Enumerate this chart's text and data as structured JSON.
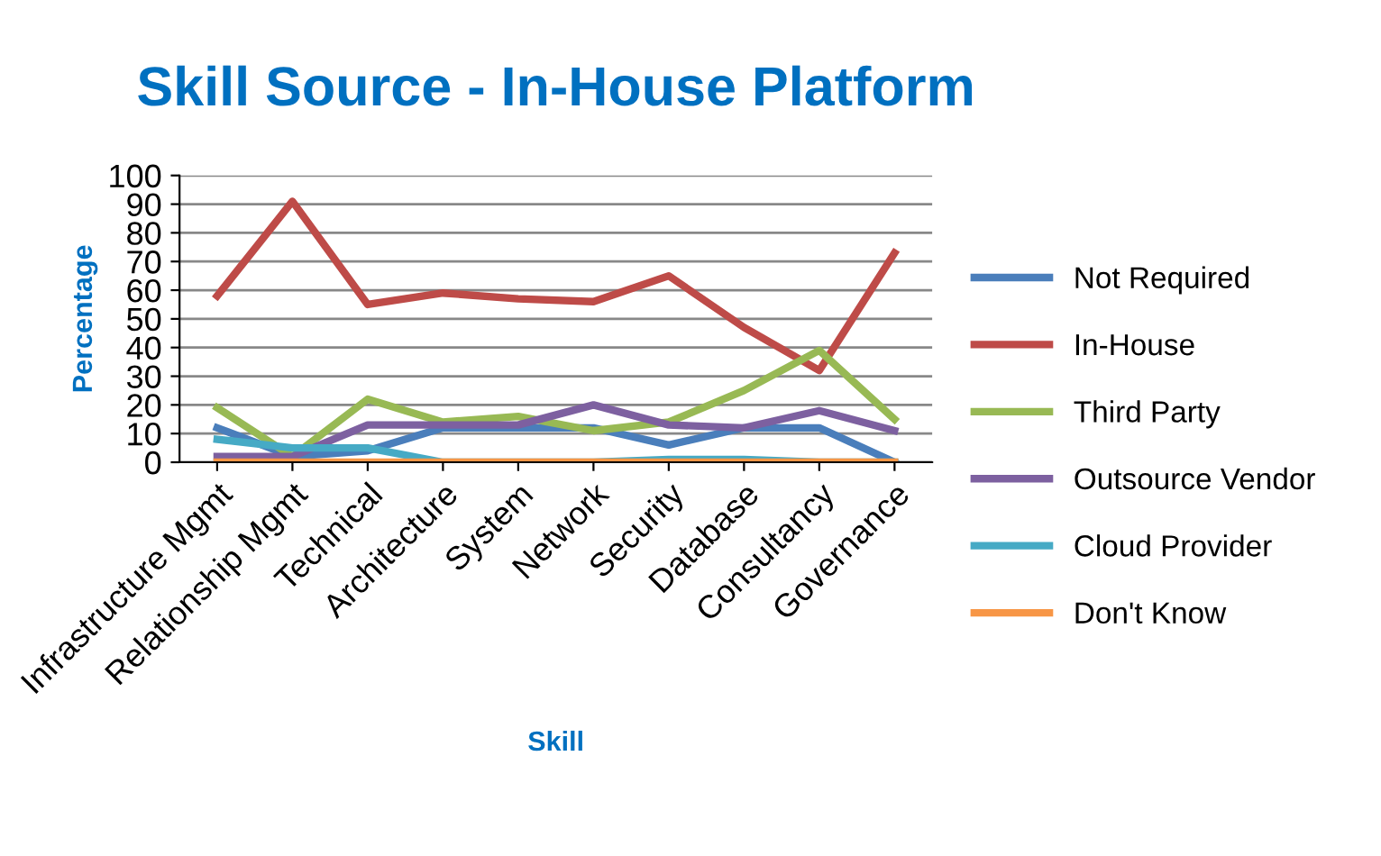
{
  "chart_data": {
    "type": "line",
    "title": "Skill Source - In-House Platform",
    "xlabel": "Skill",
    "ylabel": "Percentage",
    "categories": [
      "Infrastructure Mgmt",
      "Relationship Mgmt",
      "Technical",
      "Architecture",
      "System",
      "Network",
      "Security",
      "Database",
      "Consultancy",
      "Governance"
    ],
    "series": [
      {
        "name": "Not Required",
        "color": "#4a7ebb",
        "values": [
          12,
          2,
          4,
          12,
          12,
          12,
          6,
          12,
          12,
          0
        ]
      },
      {
        "name": "In-House",
        "color": "#be4b48",
        "values": [
          58,
          91,
          55,
          59,
          57,
          56,
          65,
          47,
          32,
          73
        ]
      },
      {
        "name": "Third Party",
        "color": "#98b954",
        "values": [
          19,
          2,
          22,
          14,
          16,
          11,
          14,
          25,
          39,
          15
        ]
      },
      {
        "name": "Outsource Vendor",
        "color": "#7d60a0",
        "values": [
          2,
          2,
          13,
          13,
          13,
          20,
          13,
          12,
          18,
          11
        ]
      },
      {
        "name": "Cloud Provider",
        "color": "#46aac5",
        "values": [
          8,
          5,
          5,
          0,
          0,
          0,
          1,
          1,
          0,
          0
        ]
      },
      {
        "name": "Don't Know",
        "color": "#f79646",
        "values": [
          0,
          0,
          0,
          0,
          0,
          0,
          0,
          0,
          0,
          0
        ]
      }
    ],
    "ylim": [
      0,
      100
    ],
    "yticks": [
      0,
      10,
      20,
      30,
      40,
      50,
      60,
      70,
      80,
      90,
      100
    ],
    "grid": "y",
    "legend": "right",
    "marker": "none",
    "line_style": "solid"
  }
}
